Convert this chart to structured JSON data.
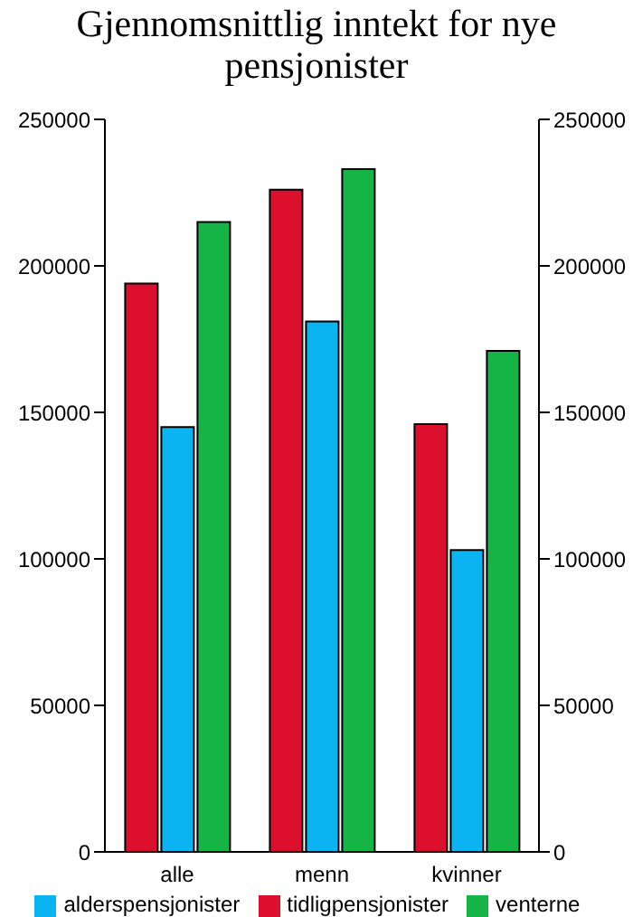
{
  "chart_data": {
    "type": "bar",
    "title": "Gjennomsnittlig inntekt for nye pensjonister",
    "categories": [
      "alle",
      "menn",
      "kvinner"
    ],
    "series": [
      {
        "name": "tidligpensjonister",
        "color": "#dc0f2d",
        "values": [
          194000,
          226000,
          146000
        ]
      },
      {
        "name": "alderspensjonister",
        "color": "#0ab4f0",
        "values": [
          145000,
          181000,
          103000
        ]
      },
      {
        "name": "venterne",
        "color": "#14b446",
        "values": [
          215000,
          233000,
          171000
        ]
      }
    ],
    "ylim": [
      0,
      250000
    ],
    "yticks": [
      0,
      50000,
      100000,
      150000,
      200000,
      250000
    ],
    "y2lim": [
      0,
      250000
    ],
    "y2ticks": [
      0,
      50000,
      100000,
      150000,
      200000,
      250000
    ],
    "grid": false,
    "legend": "bottom"
  }
}
